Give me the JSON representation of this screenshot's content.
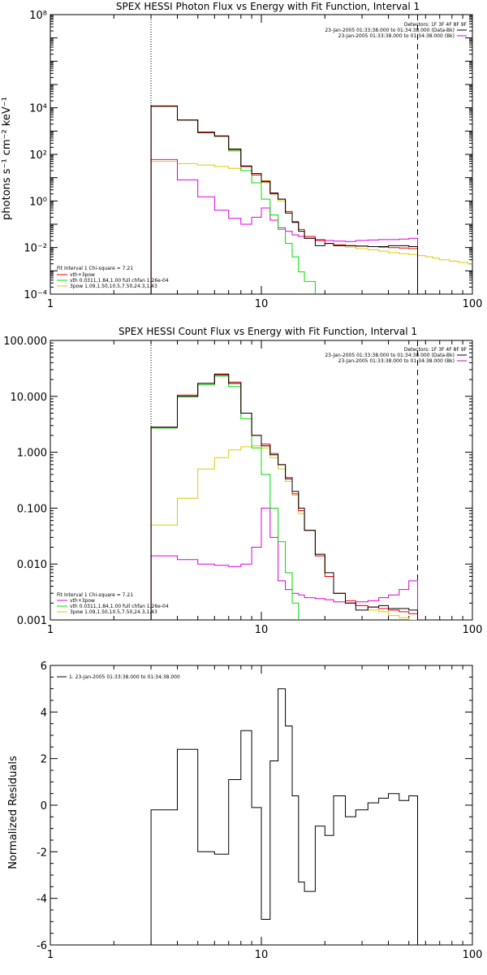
{
  "colors": {
    "black": "#000000",
    "red": "#ee0000",
    "green": "#00dd00",
    "yellow": "#ddcc00",
    "magenta": "#dd00dd"
  },
  "chart_data": [
    {
      "type": "line",
      "id": "photon",
      "title": "SPEX HESSI Photon Flux vs Energy with Fit Function, Interval 1",
      "ylabel": "photons s⁻¹ cm⁻² keV⁻¹",
      "xlabel": "",
      "xscale": "log",
      "yscale": "log",
      "xlim": [
        1,
        100
      ],
      "ylim": [
        0.0001,
        100000000
      ],
      "xticks": [
        {
          "v": 1,
          "label": "1"
        },
        {
          "v": 10,
          "label": "10"
        },
        {
          "v": 100,
          "label": "100"
        }
      ],
      "yticks": [
        {
          "v": 0.0001,
          "label": "10⁻⁴"
        },
        {
          "v": 0.01,
          "label": "10⁻²"
        },
        {
          "v": 1,
          "label": "10⁰"
        },
        {
          "v": 100,
          "label": "10²"
        },
        {
          "v": 10000,
          "label": "10⁴"
        },
        {
          "v": 100000000,
          "label": "10⁸"
        }
      ],
      "vlines": [
        {
          "x": 3,
          "style": "dotted"
        },
        {
          "x": 55,
          "style": "dashed"
        }
      ],
      "header_lines": [
        "Detectors: 1F 3F 4F 8F 9F",
        "23-Jan-2005 01:33:38.000 to 01:34:38.000 (Data-Bk)",
        "23-Jan-2005 01:33:38.000 to 01:34:38.000 (Bk)"
      ],
      "header_colors": [
        "",
        "black",
        "magenta"
      ],
      "fit_lines": [
        "Fit Interval 1    Chi-square = 7.21",
        "vth+3pow",
        "vth 0.0311,1.84,1.00  full chfan 1.26e-04",
        "3pow 1.09,1.50,10.5,7.50,24.3,1.43"
      ],
      "fit_colors": [
        "",
        "red",
        "green",
        "yellow"
      ],
      "edges": [
        3,
        4,
        5,
        6,
        7,
        8,
        9,
        10,
        11,
        12,
        13,
        14,
        15,
        16,
        18,
        20,
        22,
        25,
        28,
        32,
        36,
        40,
        45,
        50,
        55
      ],
      "series": [
        {
          "name": "",
          "color": "black",
          "values": [
            12000,
            3000,
            900,
            620,
            170,
            32,
            15,
            7,
            2.2,
            1.2,
            0.3,
            0.12,
            0.05,
            0.025,
            0.012,
            0.015,
            0.012,
            0.012,
            0.0115,
            0.011,
            0.011,
            0.012,
            0.012,
            0.011
          ]
        },
        {
          "name": "vth+3pow",
          "color": "red",
          "values": [
            11500,
            3000,
            850,
            600,
            160,
            30,
            13,
            6.5,
            2,
            1.2,
            0.35,
            0.13,
            0.06,
            0.03,
            0.02,
            0.015,
            0.013,
            0.012,
            0.0115,
            0.011,
            0.0105,
            0.01,
            0.0095,
            0.009
          ]
        },
        {
          "name": "vth",
          "color": "green",
          "values": [
            11500,
            3000,
            850,
            600,
            140,
            20,
            6,
            1.2,
            0.25,
            0.06,
            0.015,
            0.004,
            0.0009,
            0.00035,
            4e-05
          ]
        },
        {
          "name": "3pow",
          "color": "yellow",
          "values": [
            50,
            40,
            35,
            30,
            25,
            20,
            15,
            7.5,
            2,
            1,
            0.35,
            0.13,
            0.05,
            0.025,
            0.02,
            0.015,
            0.012,
            0.0105,
            0.009,
            0.008,
            0.007,
            0.006,
            0.0055,
            0.005,
            0.0045,
            0.004,
            0.0035,
            0.003,
            0.0026,
            0.0023,
            0.002
          ]
        },
        {
          "name": "",
          "color": "magenta",
          "values": [
            60,
            8,
            1.5,
            0.4,
            0.18,
            0.1,
            0.2,
            0.5,
            0.15,
            0.07,
            0.05,
            0.035,
            0.03,
            0.025,
            0.022,
            0.02,
            0.019,
            0.018,
            0.02,
            0.021,
            0.022,
            0.022,
            0.023,
            0.025
          ]
        }
      ],
      "yellow_edges": [
        3,
        4,
        5,
        6,
        7,
        8,
        9,
        10,
        11,
        12,
        13,
        14,
        15,
        16,
        18,
        20,
        22,
        25,
        28,
        32,
        36,
        40,
        45,
        50,
        55,
        60,
        65,
        70,
        78,
        86,
        95,
        100
      ]
    },
    {
      "type": "line",
      "id": "count",
      "title": "SPEX HESSI Count Flux vs Energy with Fit Function, Interval 1",
      "ylabel": "",
      "xlabel": "",
      "xscale": "log",
      "yscale": "log",
      "xlim": [
        1,
        100
      ],
      "ylim": [
        0.001,
        100
      ],
      "xticks": [
        {
          "v": 1,
          "label": "1"
        },
        {
          "v": 10,
          "label": "10"
        },
        {
          "v": 100,
          "label": "100"
        }
      ],
      "yticks": [
        {
          "v": 0.001,
          "label": "0.001"
        },
        {
          "v": 0.01,
          "label": "0.010"
        },
        {
          "v": 0.1,
          "label": "0.100"
        },
        {
          "v": 1,
          "label": "1.000"
        },
        {
          "v": 10,
          "label": "10.000"
        },
        {
          "v": 100,
          "label": "100.000"
        }
      ],
      "vlines": [
        {
          "x": 3,
          "style": "dotted"
        },
        {
          "x": 55,
          "style": "dashed"
        }
      ],
      "header_lines": [
        "Detectors: 1F 3F 4F 8F 9F",
        "23-Jan-2005 01:33:38.000 to 01:34:38.000 (Data-Bk)",
        "23-Jan-2005 01:33:38.000 to 01:34:38.000 (Bk)"
      ],
      "header_colors": [
        "",
        "black",
        "magenta"
      ],
      "fit_lines": [
        "Fit Interval 1    Chi-square = 7.21",
        "vth+3pow",
        "vth 0.0311,1.84,1.00  full chfan 1.26e-04",
        "3pow 1.09,1.50,10.5,7.50,24.3,1.43"
      ],
      "fit_colors": [
        "",
        "magenta",
        "green",
        "yellow"
      ],
      "edges": [
        3,
        4,
        5,
        6,
        7,
        8,
        9,
        10,
        11,
        12,
        13,
        14,
        15,
        16,
        18,
        20,
        22,
        25,
        28,
        32,
        36,
        40,
        45,
        50,
        55
      ],
      "series": [
        {
          "name": "",
          "color": "black",
          "values": [
            2.8,
            10,
            17,
            25,
            17,
            5,
            2,
            1.3,
            0.9,
            0.6,
            0.35,
            0.2,
            0.1,
            0.04,
            0.015,
            0.007,
            0.003,
            0.002,
            0.0015,
            0.0017,
            0.0018,
            0.0016,
            0.0016,
            0.0015
          ]
        },
        {
          "name": "vth+3pow",
          "color": "red",
          "values": [
            2.8,
            10.5,
            17,
            24,
            18,
            5,
            2,
            1.4,
            0.95,
            0.6,
            0.33,
            0.18,
            0.09,
            0.04,
            0.014,
            0.006,
            0.003,
            0.0022,
            0.0018,
            0.0017,
            0.0016,
            0.0015,
            0.0014,
            0.0013
          ]
        },
        {
          "name": "vth",
          "color": "green",
          "values": [
            2.7,
            9.8,
            16,
            23,
            15,
            4,
            1.2,
            0.4,
            0.1,
            0.025,
            0.007,
            0.002
          ]
        },
        {
          "name": "3pow",
          "color": "yellow",
          "values": [
            0.05,
            0.15,
            0.5,
            0.8,
            1.1,
            1.25,
            1.3,
            1.2,
            0.8,
            0.5,
            0.3,
            0.17,
            0.08,
            0.04,
            0.014,
            0.006,
            0.003,
            0.002,
            0.0018,
            0.0015,
            0.0014,
            0.0012,
            0.0011,
            0.001,
            0.00095
          ]
        },
        {
          "name": "",
          "color": "magenta",
          "values": [
            0.014,
            0.012,
            0.01,
            0.0095,
            0.009,
            0.01,
            0.02,
            0.1,
            0.03,
            0.005,
            0.0035,
            0.003,
            0.0028,
            0.0025,
            0.0024,
            0.0023,
            0.0021,
            0.002,
            0.0021,
            0.0022,
            0.0025,
            0.0028,
            0.0035,
            0.005
          ]
        }
      ],
      "yellow_edges": [
        3,
        4,
        5,
        6,
        7,
        8,
        9,
        10,
        11,
        12,
        13,
        14,
        15,
        16,
        18,
        20,
        22,
        25,
        28,
        32,
        36,
        40,
        45,
        50,
        55,
        60
      ]
    },
    {
      "type": "line",
      "id": "resid",
      "title": "",
      "ylabel": "Normalized Residuals",
      "xlabel": "",
      "xscale": "log",
      "yscale": "linear",
      "xlim": [
        1,
        100
      ],
      "ylim": [
        -6,
        6
      ],
      "xticks": [
        {
          "v": 1,
          "label": "1"
        },
        {
          "v": 10,
          "label": "10"
        },
        {
          "v": 100,
          "label": "100"
        }
      ],
      "yticks": [
        {
          "v": -6,
          "label": "-6"
        },
        {
          "v": -4,
          "label": "-4"
        },
        {
          "v": -2,
          "label": "-2"
        },
        {
          "v": 0,
          "label": "0"
        },
        {
          "v": 2,
          "label": "2"
        },
        {
          "v": 4,
          "label": "4"
        },
        {
          "v": 6,
          "label": "6"
        }
      ],
      "legend_label": "1. 23-Jan-2005 01:33:38.000 to 01:34:38.000",
      "edges": [
        3,
        4,
        5,
        6,
        7,
        8,
        9,
        10,
        11,
        12,
        13,
        14,
        15,
        16,
        18,
        20,
        22,
        25,
        28,
        32,
        36,
        40,
        45,
        50,
        55
      ],
      "series": [
        {
          "name": "",
          "color": "black",
          "values": [
            -0.2,
            2.4,
            -2.0,
            -2.1,
            1.1,
            3.2,
            -0.1,
            -4.9,
            1.9,
            5.0,
            3.4,
            0.4,
            -3.3,
            -3.7,
            -0.9,
            -1.3,
            0.4,
            -0.5,
            -0.2,
            0.1,
            0.3,
            0.5,
            0.2,
            0.4
          ]
        }
      ]
    }
  ]
}
